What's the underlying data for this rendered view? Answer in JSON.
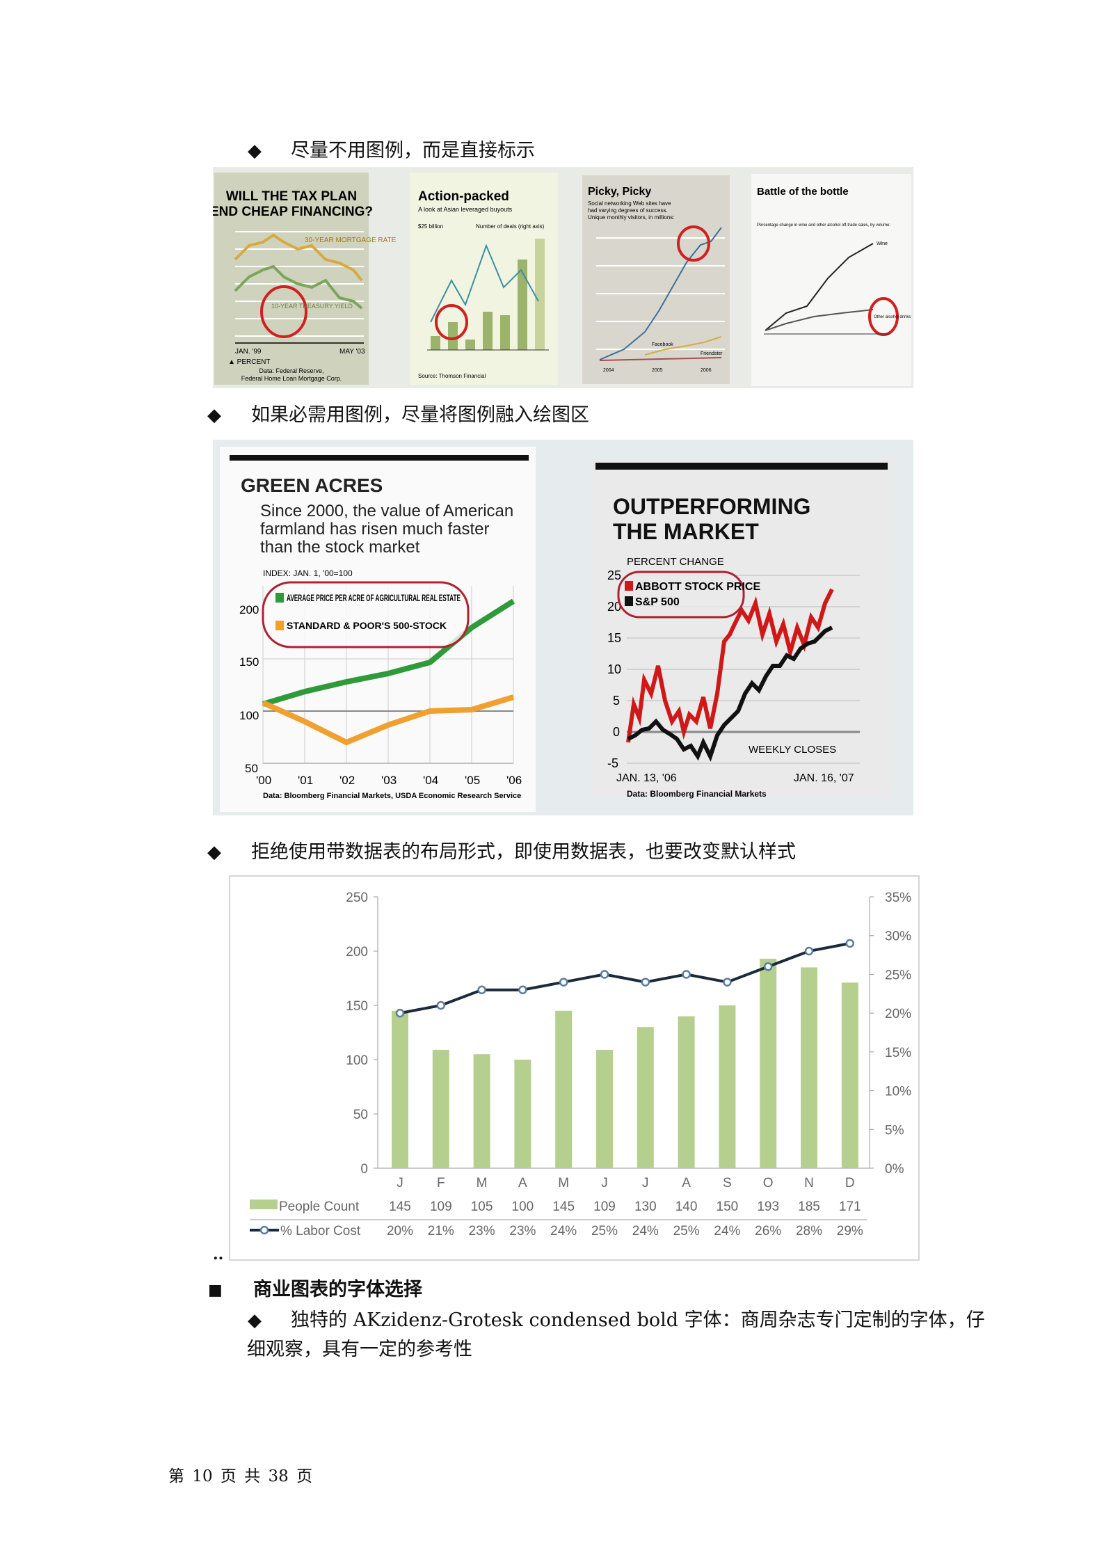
{
  "bullets": {
    "b1": "尽量不用图例，而是直接标示",
    "b2": "如果必需用图例，尽量将图例融入绘图区",
    "b3": "拒绝使用带数据表的布局形式，即使用数据表，也要改变默认样式",
    "dots": "..",
    "heading": "商业图表的字体选择",
    "sub_line1": "独特的 AKzidenz-Grotesk condensed bold 字体：商周杂志专门定制的字体，仔",
    "sub_line2": "细观察，具有一定的参考性"
  },
  "row1": {
    "p1": {
      "title1": "WILL THE TAX PLAN",
      "title2": "END CHEAP FINANCING?",
      "label_mortgage": "30-YEAR MORTGAGE RATE",
      "label_treasury": "10-YEAR TREASURY YIELD",
      "x_start": "JAN. '99",
      "x_end": "MAY '03",
      "unit": "▲ PERCENT",
      "source1": "Data: Federal Reserve,",
      "source2": "Federal Home Loan Mortgage Corp."
    },
    "p2": {
      "title": "Action-packed",
      "subtitle": "A look at Asian leveraged buyouts",
      "left_unit": "$25 billion",
      "right_label": "Number of deals (right axis)",
      "source": "Source: Thomson Financial"
    },
    "p3": {
      "title": "Picky, Picky",
      "subtitle1": "Social networking Web sites have",
      "subtitle2": "had varying degrees of success.",
      "subtitle3": "Unique monthly visitors, in millions:",
      "label_a": "Facebook",
      "label_b": "Friendster",
      "x1": "2004",
      "x2": "2005",
      "x3": "2006"
    },
    "p4": {
      "title": "Battle of the bottle",
      "subtitle": "Percentage change in wine and other alcohol off-trade sales, by volume:",
      "label_wine": "Wine",
      "label_other": "Other alcohol drinks"
    }
  },
  "row2": {
    "green_acres": {
      "title": "GREEN ACRES",
      "subtitle1": "Since 2000, the value of American",
      "subtitle2": "farmland has risen much faster",
      "subtitle3": "than the stock market",
      "index_note": "INDEX: JAN. 1, '00=100",
      "legend_green": "AVERAGE PRICE PER ACRE OF AGRICULTURAL REAL ESTATE",
      "legend_orange": "STANDARD & POOR'S 500-STOCK",
      "y_ticks": [
        "200",
        "150",
        "100",
        "50"
      ],
      "x_ticks": [
        "'00",
        "'01",
        "'02",
        "'03",
        "'04",
        "'05",
        "'06"
      ],
      "source": "Data: Bloomberg Financial Markets, USDA Economic Research Service",
      "colors": {
        "green": "#2f9a3a",
        "orange": "#f0a030"
      }
    },
    "outperforming": {
      "title1": "OUTPERFORMING",
      "title2": "THE MARKET",
      "y_label": "PERCENT CHANGE",
      "y_ticks": [
        "25",
        "20",
        "15",
        "10",
        "5",
        "0",
        "-5"
      ],
      "legend_red": "ABBOTT STOCK PRICE",
      "legend_black": "S&P 500",
      "note": "WEEKLY CLOSES",
      "x_start": "JAN. 13, '06",
      "x_end": "JAN. 16, '07",
      "source": "Data: Bloomberg Financial Markets",
      "colors": {
        "red": "#d01818",
        "black": "#111111"
      }
    }
  },
  "chart_data": {
    "type": "bar",
    "categories": [
      "J",
      "F",
      "M",
      "A",
      "M",
      "J",
      "J",
      "A",
      "S",
      "O",
      "N",
      "D"
    ],
    "series": [
      {
        "name": "People Count",
        "type": "bar",
        "axis": "left",
        "values": [
          145,
          109,
          105,
          100,
          145,
          109,
          130,
          140,
          150,
          193,
          185,
          171
        ],
        "labels": [
          "145",
          "109",
          "105",
          "100",
          "145",
          "109",
          "130",
          "140",
          "150",
          "193",
          "185",
          "171"
        ],
        "color": "#b5cf8f"
      },
      {
        "name": "% Labor Cost",
        "type": "line",
        "axis": "right",
        "values": [
          20,
          21,
          23,
          23,
          24,
          25,
          24,
          25,
          24,
          26,
          28,
          29
        ],
        "labels": [
          "20%",
          "21%",
          "23%",
          "23%",
          "24%",
          "25%",
          "24%",
          "25%",
          "24%",
          "26%",
          "28%",
          "29%"
        ],
        "color": "#1c2a3a"
      }
    ],
    "y_left": {
      "range": [
        0,
        250
      ],
      "ticks": [
        "0",
        "50",
        "100",
        "150",
        "200",
        "250"
      ]
    },
    "y_right": {
      "range": [
        0,
        35
      ],
      "ticks": [
        "0%",
        "5%",
        "10%",
        "15%",
        "20%",
        "25%",
        "30%",
        "35%"
      ]
    },
    "legend": "data-table-bottom",
    "grid": false
  },
  "footer": "第 10 页 共 38 页"
}
